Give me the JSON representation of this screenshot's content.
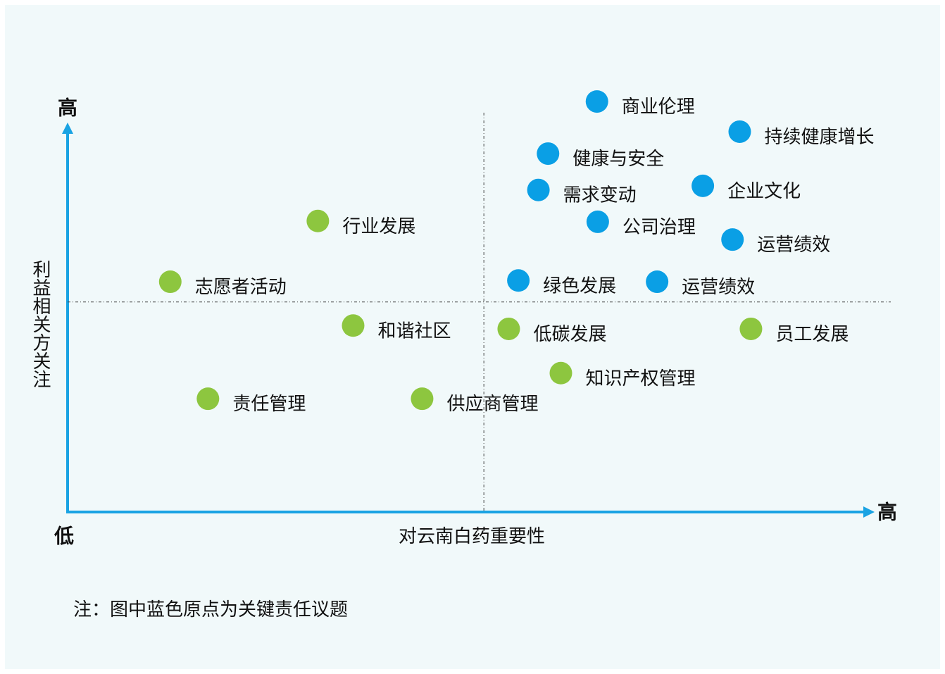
{
  "chart_data": {
    "type": "scatter",
    "y_top_label": "高",
    "x_end_label": "高",
    "origin_label": "低",
    "ylabel": "利益相关方关注",
    "xlabel": "对云南白药重要性",
    "note": "注：图中蓝色原点为关键责任议题",
    "xlim": [
      0,
      100
    ],
    "ylim": [
      0,
      100
    ],
    "dividers": {
      "x": 51.9,
      "y": 50.8
    },
    "series": [
      {
        "color": "#0a9fe5",
        "labels": [
          "商业伦理",
          "持续健康增长",
          "健康与安全",
          "需求变动",
          "企业文化",
          "公司治理",
          "运营绩效",
          "绿色发展",
          "运营绩效"
        ],
        "x": [
          66.0,
          83.8,
          59.9,
          58.7,
          79.2,
          66.1,
          82.9,
          56.2,
          73.5
        ],
        "values": [
          99.3,
          92.0,
          86.7,
          77.9,
          78.9,
          70.2,
          65.9,
          56.0,
          55.7
        ]
      },
      {
        "color": "#8dc63f",
        "labels": [
          "行业发展",
          "志愿者活动",
          "和谐社区",
          "低碳发展",
          "员工发展",
          "知识产权管理",
          "责任管理",
          "供应商管理"
        ],
        "x": [
          31.2,
          12.8,
          35.6,
          55.0,
          85.2,
          61.5,
          17.5,
          44.2
        ],
        "values": [
          70.4,
          55.7,
          45.1,
          44.3,
          44.3,
          33.6,
          27.4,
          27.4
        ]
      }
    ]
  }
}
